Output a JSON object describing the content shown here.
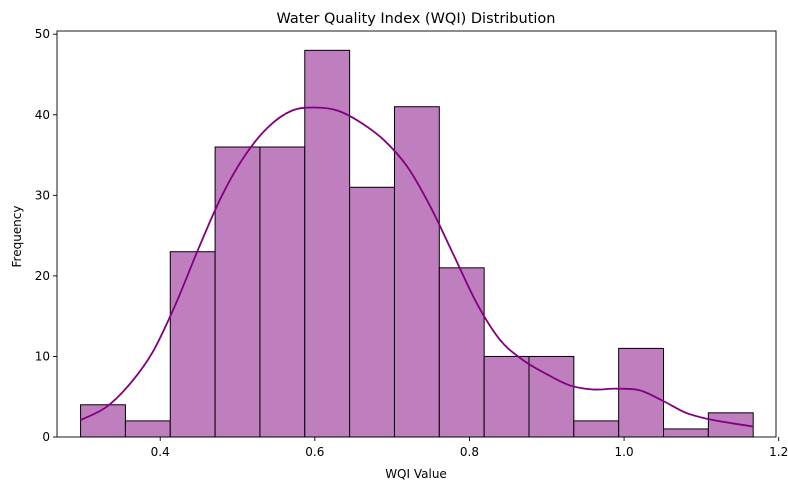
{
  "chart_data": {
    "type": "bar",
    "title": "Water Quality Index (WQI) Distribution",
    "xlabel": "WQI Value",
    "ylabel": "Frequency",
    "xlim": [
      0.2665,
      1.1965
    ],
    "ylim": [
      0,
      50.4
    ],
    "xticks": [
      0.4,
      0.6,
      0.8,
      1.0,
      1.2
    ],
    "xtick_labels": [
      "0.4",
      "0.6",
      "0.8",
      "1.0",
      "1.2"
    ],
    "yticks": [
      0,
      10,
      20,
      30,
      40,
      50
    ],
    "ytick_labels": [
      "0",
      "10",
      "20",
      "30",
      "40",
      "50"
    ],
    "grid": false,
    "bar_color": "#bf7fbf",
    "bar_edge_color": "#000000",
    "kde_color": "#800080",
    "bins": [
      {
        "x0": 0.297,
        "x1": 0.355,
        "count": 4
      },
      {
        "x0": 0.355,
        "x1": 0.413,
        "count": 2
      },
      {
        "x0": 0.413,
        "x1": 0.471,
        "count": 23
      },
      {
        "x0": 0.471,
        "x1": 0.529,
        "count": 36
      },
      {
        "x0": 0.529,
        "x1": 0.587,
        "count": 36
      },
      {
        "x0": 0.587,
        "x1": 0.645,
        "count": 48
      },
      {
        "x0": 0.645,
        "x1": 0.703,
        "count": 31
      },
      {
        "x0": 0.703,
        "x1": 0.761,
        "count": 41
      },
      {
        "x0": 0.761,
        "x1": 0.819,
        "count": 21
      },
      {
        "x0": 0.819,
        "x1": 0.877,
        "count": 10
      },
      {
        "x0": 0.877,
        "x1": 0.935,
        "count": 10
      },
      {
        "x0": 0.935,
        "x1": 0.993,
        "count": 2
      },
      {
        "x0": 0.993,
        "x1": 1.051,
        "count": 11
      },
      {
        "x0": 1.051,
        "x1": 1.109,
        "count": 1
      },
      {
        "x0": 1.109,
        "x1": 1.167,
        "count": 3
      }
    ],
    "kde": {
      "x": [
        0.297,
        0.33,
        0.36,
        0.39,
        0.42,
        0.45,
        0.48,
        0.51,
        0.54,
        0.57,
        0.6,
        0.63,
        0.66,
        0.69,
        0.72,
        0.75,
        0.78,
        0.81,
        0.84,
        0.87,
        0.9,
        0.93,
        0.96,
        0.99,
        1.02,
        1.05,
        1.08,
        1.11,
        1.14,
        1.167
      ],
      "y": [
        2.1,
        3.7,
        6.5,
        10.5,
        16.5,
        23.5,
        30.0,
        35.0,
        38.5,
        40.5,
        40.9,
        40.5,
        39.0,
        36.8,
        33.5,
        28.5,
        22.5,
        16.5,
        12.0,
        9.5,
        7.8,
        6.4,
        5.9,
        6.0,
        5.8,
        4.5,
        3.0,
        2.2,
        1.7,
        1.3
      ]
    }
  }
}
